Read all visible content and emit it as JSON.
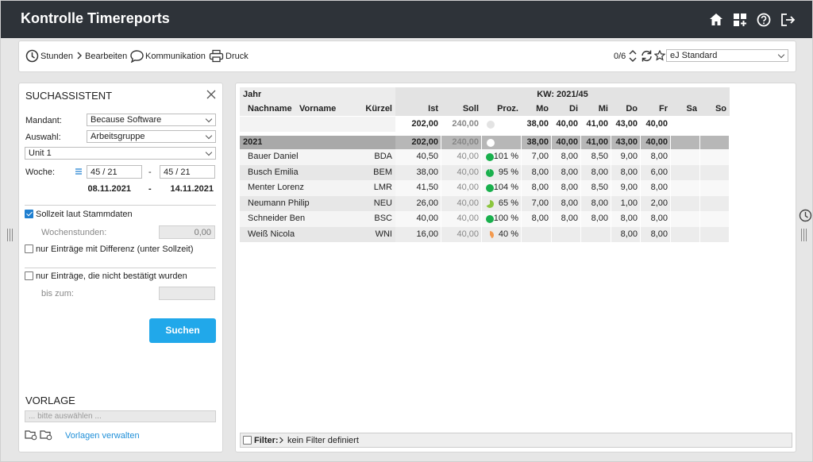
{
  "header": {
    "title": "Kontrolle Timereports"
  },
  "toolbar": {
    "items": [
      "Stunden",
      "Bearbeiten",
      "Kommunikation",
      "Druck"
    ],
    "pager": "0/6",
    "view": "eJ Standard"
  },
  "search": {
    "title": "SUCHASSISTENT",
    "mandant": {
      "label": "Mandant:",
      "value": "Because Software"
    },
    "auswahl": {
      "label": "Auswahl:",
      "value": "Arbeitsgruppe"
    },
    "unit": "Unit 1",
    "woche": {
      "label": "Woche:",
      "from": "45 / 21",
      "to": "45 / 21",
      "separator": "-",
      "date_from": "08.11.2021",
      "date_to": "14.11.2021"
    },
    "options": [
      {
        "label": "Sollzeit laut Stammdaten",
        "checked": true
      },
      {
        "label": "nur Einträge mit Differenz (unter Sollzeit)",
        "checked": false
      },
      {
        "label": "nur Einträge, die nicht bestätigt wurden",
        "checked": false
      }
    ],
    "wochenstunden": {
      "label": "Wochenstunden:",
      "value": "0,00"
    },
    "bis_zum": {
      "label": "bis zum:"
    },
    "button": "Suchen"
  },
  "vorlage": {
    "title": "VORLAGE",
    "placeholder": "... bitte auswählen ...",
    "link": "Vorlagen verwalten"
  },
  "table": {
    "year_header": "Jahr",
    "week_header": "KW: 2021/45",
    "columns": [
      "Nachname",
      "Vorname",
      "Kürzel",
      "Ist",
      "Soll",
      "Proz.",
      "Mo",
      "Di",
      "Mi",
      "Do",
      "Fr",
      "Sa",
      "So"
    ],
    "totals": {
      "ist": "202,00",
      "soll": "240,00",
      "days": [
        "38,00",
        "40,00",
        "41,00",
        "43,00",
        "40,00"
      ]
    },
    "group": {
      "label": "2021",
      "ist": "202,00",
      "soll": "240,00",
      "days": [
        "38,00",
        "40,00",
        "41,00",
        "43,00",
        "40,00"
      ]
    },
    "rows": [
      {
        "name": "Bauer Daniel",
        "kuerzel": "BDA",
        "ist": "40,50",
        "soll": "40,00",
        "proz": {
          "value": 101,
          "label": "101 %",
          "color": "#19b04d"
        },
        "days": [
          "7,00",
          "8,00",
          "8,50",
          "9,00",
          "8,00"
        ]
      },
      {
        "name": "Busch Emilia",
        "kuerzel": "BEM",
        "ist": "38,00",
        "soll": "40,00",
        "proz": {
          "value": 95,
          "label": "95 %",
          "color": "#19b04d"
        },
        "days": [
          "8,00",
          "8,00",
          "8,00",
          "8,00",
          "6,00"
        ]
      },
      {
        "name": "Menter Lorenz",
        "kuerzel": "LMR",
        "ist": "41,50",
        "soll": "40,00",
        "proz": {
          "value": 104,
          "label": "104 %",
          "color": "#19b04d"
        },
        "days": [
          "8,00",
          "8,00",
          "8,50",
          "9,00",
          "8,00"
        ]
      },
      {
        "name": "Neumann Philip",
        "kuerzel": "NEU",
        "ist": "26,00",
        "soll": "40,00",
        "proz": {
          "value": 65,
          "label": "65 %",
          "color": "#8cc63e"
        },
        "days": [
          "7,00",
          "8,00",
          "8,00",
          "1,00",
          "2,00"
        ]
      },
      {
        "name": "Schneider Ben",
        "kuerzel": "BSC",
        "ist": "40,00",
        "soll": "40,00",
        "proz": {
          "value": 100,
          "label": "100 %",
          "color": "#19b04d"
        },
        "days": [
          "8,00",
          "8,00",
          "8,00",
          "8,00",
          "8,00"
        ]
      },
      {
        "name": "Weiß Nicola",
        "kuerzel": "WNI",
        "ist": "16,00",
        "soll": "40,00",
        "proz": {
          "value": 40,
          "label": "40 %",
          "color": "#f39a4f"
        },
        "days": [
          null,
          null,
          null,
          "8,00",
          "8,00"
        ]
      }
    ]
  },
  "filter": {
    "label": "Filter:",
    "value": "kein Filter definiert"
  }
}
